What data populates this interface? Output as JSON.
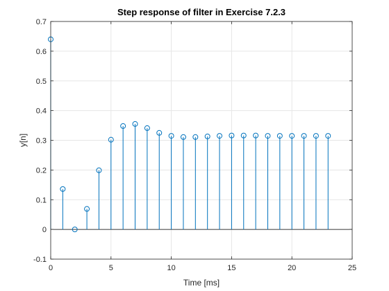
{
  "chart_data": {
    "type": "stem",
    "title": "Step response of filter in Exercise 7.2.3",
    "xlabel": "Time [ms]",
    "ylabel": "y[n]",
    "xlim": [
      0,
      25
    ],
    "ylim": [
      -0.1,
      0.7
    ],
    "xticks": [
      0,
      5,
      10,
      15,
      20,
      25
    ],
    "yticks": [
      -0.1,
      0,
      0.1,
      0.2,
      0.3,
      0.4,
      0.5,
      0.6,
      0.7
    ],
    "xtick_labels": [
      "0",
      "5",
      "10",
      "15",
      "20",
      "25"
    ],
    "ytick_labels": [
      "-0.1",
      "0",
      "0.1",
      "0.2",
      "0.3",
      "0.4",
      "0.5",
      "0.6",
      "0.7"
    ],
    "grid": true,
    "x": [
      0,
      1,
      2,
      3,
      4,
      5,
      6,
      7,
      8,
      9,
      10,
      11,
      12,
      13,
      14,
      15,
      16,
      17,
      18,
      19,
      20,
      21,
      22,
      23
    ],
    "y": [
      0.64,
      0.136,
      0.0,
      0.069,
      0.199,
      0.302,
      0.348,
      0.355,
      0.341,
      0.325,
      0.315,
      0.311,
      0.311,
      0.313,
      0.315,
      0.316,
      0.316,
      0.316,
      0.315,
      0.315,
      0.315,
      0.315,
      0.315,
      0.315
    ],
    "colors": {
      "series": "#0072bd",
      "axes": "#262626",
      "grid": "#e6e6e6",
      "baseline": "#000000"
    }
  }
}
